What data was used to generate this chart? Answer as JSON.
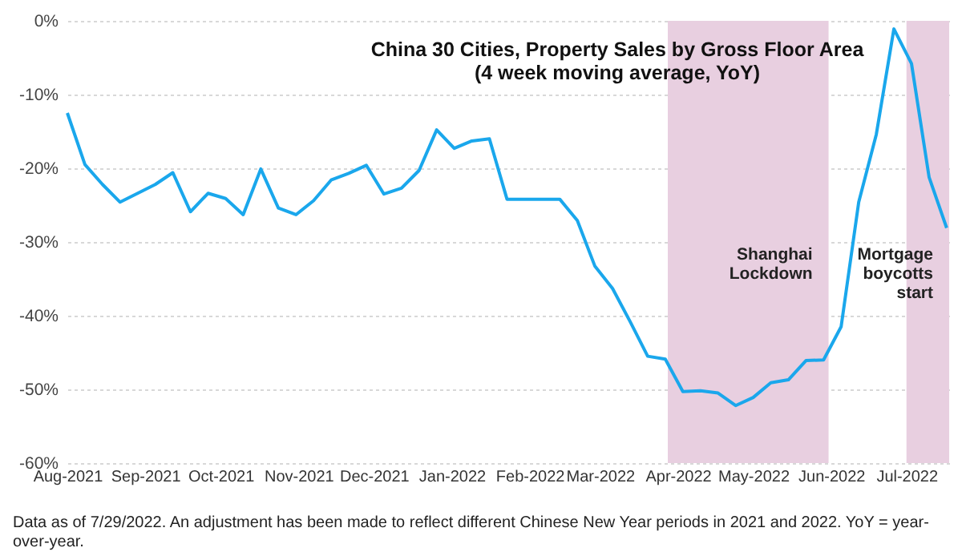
{
  "chart_data": {
    "type": "line",
    "title": "China 30 Cities, Property Sales by Gross Floor Area",
    "subtitle": "(4 week moving average, YoY)",
    "x": [
      "2021-08-01",
      "2021-08-08",
      "2021-08-15",
      "2021-08-22",
      "2021-08-29",
      "2021-09-05",
      "2021-09-12",
      "2021-09-19",
      "2021-09-26",
      "2021-10-03",
      "2021-10-10",
      "2021-10-17",
      "2021-10-24",
      "2021-10-31",
      "2021-11-07",
      "2021-11-14",
      "2021-11-21",
      "2021-11-28",
      "2021-12-05",
      "2021-12-12",
      "2021-12-19",
      "2021-12-26",
      "2022-01-02",
      "2022-01-09",
      "2022-01-16",
      "2022-01-23",
      "2022-01-30",
      "2022-02-06",
      "2022-02-13",
      "2022-02-20",
      "2022-02-27",
      "2022-03-06",
      "2022-03-13",
      "2022-03-20",
      "2022-03-27",
      "2022-04-03",
      "2022-04-10",
      "2022-04-17",
      "2022-04-24",
      "2022-05-01",
      "2022-05-08",
      "2022-05-15",
      "2022-05-22",
      "2022-05-29",
      "2022-06-05",
      "2022-06-12",
      "2022-06-19",
      "2022-06-26",
      "2022-07-03",
      "2022-07-10",
      "2022-07-17"
    ],
    "series": [
      {
        "color": "#1aa7ec",
        "values": [
          -12.5,
          -19.5,
          -22.2,
          -24.6,
          -23.4,
          -22.2,
          -20.6,
          -25.9,
          -23.4,
          -24.1,
          -26.3,
          -20.1,
          -25.4,
          -26.3,
          -24.4,
          -21.6,
          -20.7,
          -19.6,
          -23.5,
          -22.7,
          -20.3,
          -14.8,
          -17.3,
          -16.3,
          -16.0,
          -24.2,
          -24.2,
          -24.2,
          -24.2,
          -27.1,
          -33.3,
          -36.3,
          -40.8,
          -45.5,
          -45.9,
          -50.3,
          -50.2,
          -50.5,
          -52.2,
          -51.1,
          -49.1,
          -48.7,
          -46.1,
          -46.0,
          -41.5,
          -24.6,
          -15.4,
          -1.1,
          -5.8,
          -21.2,
          -28.1
        ]
      }
    ],
    "xlim": [
      "2021-08-01",
      "2022-07-18"
    ],
    "xticks": [
      {
        "value": "2021-08-01",
        "label": "Aug-2021"
      },
      {
        "value": "2021-09-01",
        "label": "Sep-2021"
      },
      {
        "value": "2021-10-01",
        "label": "Oct-2021"
      },
      {
        "value": "2021-11-01",
        "label": "Nov-2021"
      },
      {
        "value": "2021-12-01",
        "label": "Dec-2021"
      },
      {
        "value": "2022-01-01",
        "label": "Jan-2022"
      },
      {
        "value": "2022-02-01",
        "label": "Feb-2022"
      },
      {
        "value": "2022-03-01",
        "label": "Mar-2022"
      },
      {
        "value": "2022-04-01",
        "label": "Apr-2022"
      },
      {
        "value": "2022-05-01",
        "label": "May-2022"
      },
      {
        "value": "2022-06-01",
        "label": "Jun-2022"
      },
      {
        "value": "2022-07-01",
        "label": "Jul-2022"
      }
    ],
    "ylim": [
      -60,
      0
    ],
    "yticks": [
      {
        "value": -60,
        "label": "-60%"
      },
      {
        "value": -50,
        "label": "-50%"
      },
      {
        "value": -40,
        "label": "-40%"
      },
      {
        "value": -30,
        "label": "-30%"
      },
      {
        "value": -20,
        "label": "-20%"
      },
      {
        "value": -10,
        "label": "-10%"
      },
      {
        "value": 0,
        "label": "0%"
      }
    ],
    "grid": "y",
    "bands": [
      {
        "axis": "x",
        "from": "2022-03-28",
        "to": "2022-05-31",
        "label": "Shanghai Lockdown",
        "color": "#e8cfe0"
      },
      {
        "axis": "x",
        "from": "2022-07-01",
        "to": "2022-07-18",
        "label": "Mortgage boycotts start",
        "color": "#e8cfe0"
      }
    ],
    "annotations": [
      "Data as of 7/29/2022. An adjustment has been made to reflect different Chinese New Year periods in 2021 and 2022. YoY = year-over-year."
    ]
  }
}
